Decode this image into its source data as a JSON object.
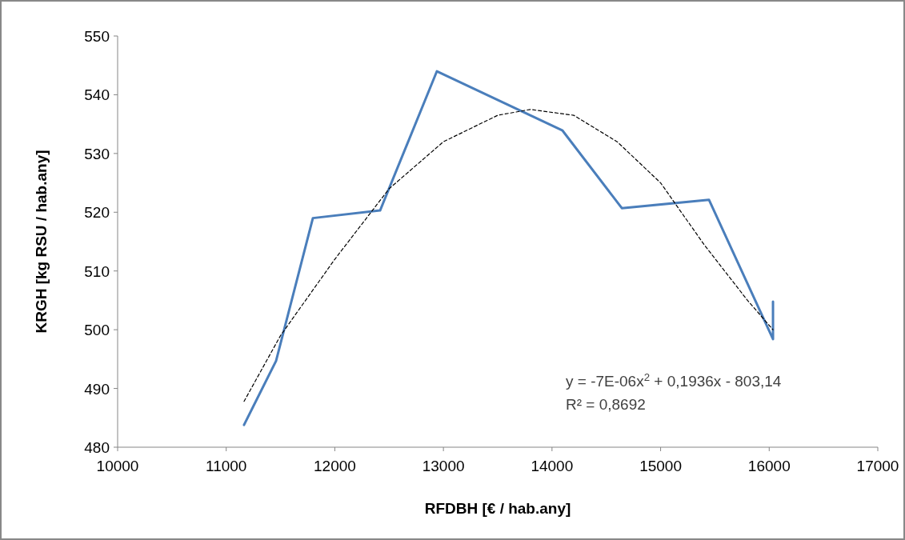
{
  "chart_data": {
    "type": "line",
    "xlabel": "RFDBH  [€ / hab.any]",
    "ylabel": "KRGH [kg RSU / hab.any]",
    "xlim": [
      10000,
      17000
    ],
    "xticks": [
      10000,
      11000,
      12000,
      13000,
      14000,
      15000,
      16000,
      17000
    ],
    "ylim": [
      480,
      550
    ],
    "yticks": [
      480,
      490,
      500,
      510,
      520,
      530,
      540,
      550
    ],
    "grid": false,
    "marker": "none",
    "series": [
      {
        "color": "#4a7ebb",
        "line_style": "solid",
        "x": [
          11164,
          11459,
          11798,
          12417,
          12940,
          14097,
          14643,
          15446,
          16035,
          16035
        ],
        "values": [
          483.8,
          494.7,
          519,
          520.3,
          544,
          533.9,
          520.7,
          522.1,
          498.4,
          504.8
        ]
      },
      {
        "color": "#000000",
        "line_style": "dashed",
        "x": [
          11164,
          11500,
          12000,
          12500,
          13000,
          13500,
          13800,
          14200,
          14600,
          15000,
          15400,
          15800,
          16035
        ],
        "values": [
          487.8,
          499,
          512,
          524,
          532,
          536.5,
          537.5,
          536.5,
          532,
          525,
          514.5,
          505,
          500
        ]
      }
    ],
    "annotations": [
      "y = -7E-06x$^{2}$ + 0,1936x - 803,14",
      "R² = 0,8692"
    ]
  }
}
